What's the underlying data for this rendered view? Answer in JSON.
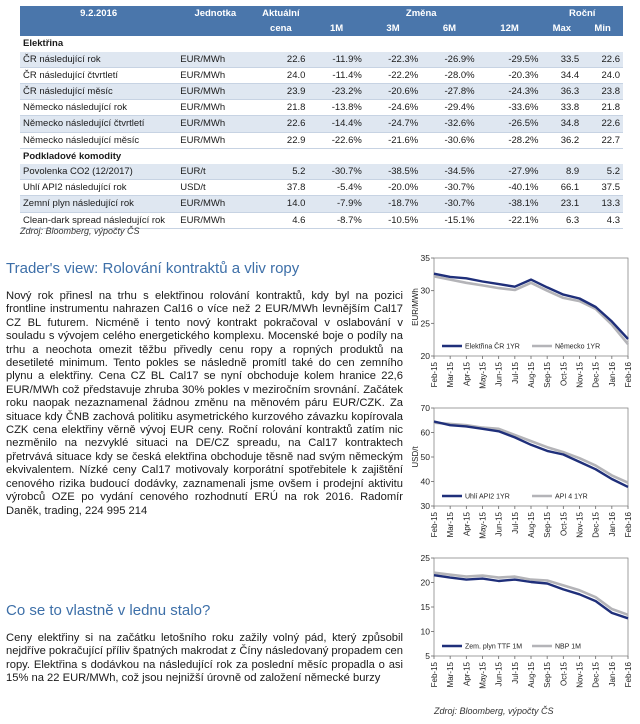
{
  "table": {
    "header_top": {
      "date": "9.2.2016",
      "unit": "Jednotka",
      "price": "Aktuální",
      "change": "Změna",
      "annual": "Roční"
    },
    "header_bottom": {
      "price": "cena",
      "m1": "1M",
      "m3": "3M",
      "m6": "6M",
      "m12": "12M",
      "max": "Max",
      "min": "Min"
    },
    "sections": [
      {
        "title": "Elektřina",
        "rows": [
          {
            "name": "ČR následující rok",
            "unit": "EUR/MWh",
            "price": "22.6",
            "m1": "-11.9%",
            "m3": "-22.3%",
            "m6": "-26.9%",
            "m12": "-29.5%",
            "max": "33.5",
            "min": "22.6"
          },
          {
            "name": "ČR následující čtvrtletí",
            "unit": "EUR/MWh",
            "price": "24.0",
            "m1": "-11.4%",
            "m3": "-22.2%",
            "m6": "-28.0%",
            "m12": "-20.3%",
            "max": "34.4",
            "min": "24.0"
          },
          {
            "name": "ČR následující měsíc",
            "unit": "EUR/MWh",
            "price": "23.9",
            "m1": "-23.2%",
            "m3": "-20.6%",
            "m6": "-27.8%",
            "m12": "-24.3%",
            "max": "36.3",
            "min": "23.8"
          },
          {
            "name": "Německo následující rok",
            "unit": "EUR/MWh",
            "price": "21.8",
            "m1": "-13.8%",
            "m3": "-24.6%",
            "m6": "-29.4%",
            "m12": "-33.6%",
            "max": "33.8",
            "min": "21.8"
          },
          {
            "name": "Německo následující čtvrtletí",
            "unit": "EUR/MWh",
            "price": "22.6",
            "m1": "-14.4%",
            "m3": "-24.7%",
            "m6": "-32.6%",
            "m12": "-26.5%",
            "max": "34.8",
            "min": "22.6"
          },
          {
            "name": "Německo následující měsíc",
            "unit": "EUR/MWh",
            "price": "22.9",
            "m1": "-22.6%",
            "m3": "-21.6%",
            "m6": "-30.6%",
            "m12": "-28.2%",
            "max": "36.2",
            "min": "22.7"
          }
        ]
      },
      {
        "title": "Podkladové komodity",
        "rows": [
          {
            "name": "Povolenka CO2 (12/2017)",
            "unit": "EUR/t",
            "price": "5.2",
            "m1": "-30.7%",
            "m3": "-38.5%",
            "m6": "-34.5%",
            "m12": "-27.9%",
            "max": "8.9",
            "min": "5.2"
          },
          {
            "name": "Uhlí API2 následující rok",
            "unit": "USD/t",
            "price": "37.8",
            "m1": "-5.4%",
            "m3": "-20.0%",
            "m6": "-30.7%",
            "m12": "-40.1%",
            "max": "66.1",
            "min": "37.5"
          },
          {
            "name": "Zemní plyn následující rok",
            "unit": "EUR/MWh",
            "price": "14.0",
            "m1": "-7.9%",
            "m3": "-18.7%",
            "m6": "-30.7%",
            "m12": "-38.1%",
            "max": "23.1",
            "min": "13.3"
          },
          {
            "name": "Clean-dark spread následující rok",
            "unit": "EUR/MWh",
            "price": "4.6",
            "m1": "-8.7%",
            "m3": "-10.5%",
            "m6": "-15.1%",
            "m12": "-22.1%",
            "max": "6.3",
            "min": "4.3"
          }
        ]
      }
    ],
    "source": "Zdroj: Bloomberg, výpočty ČS"
  },
  "article1": {
    "title": "Trader's view: Rolování kontraktů a vliv ropy",
    "body": "Nový rok přinesl na trhu s elektřinou rolování kontraktů, kdy byl na pozici frontline instrumentu nahrazen Cal16 o více než 2 EUR/MWh levnějším Cal17 CZ BL futurem. Nicméně i tento nový kontrakt pokračoval v oslabování v souladu s vývojem celého energetického komplexu. Mocenské boje o podíly na trhu a neochota omezit těžbu přivedly cenu ropy a ropných produktů na desetileté minimum. Tento pokles se následně promítl také do cen zemního plynu a elektřiny. Cena CZ BL Cal17 se nyní obchoduje kolem hranice 22,6 EUR/MWh což představuje zhruba 30% pokles v meziročním srovnání. Začátek roku naopak nezaznamenal žádnou změnu na měnovém páru EUR/CZK. Za situace kdy ČNB zachová politiku asymetrického kurzového závazku kopírovala CZK cena elektřiny věrně vývoj EUR ceny. Roční rolování kontraktů zatím nic nezměnilo na nezvyklé situaci na DE/CZ spreadu, na Cal17 kontraktech přetrvává situace kdy se česká elektřina obchoduje těsně nad svým německým ekvivalentem. Nízké ceny Cal17 motivovaly korporátní spotřebitele k zajištění cenového rizika budoucí dodávky, zaznamenali jsme ovšem i prodejní aktivitu výrobců OZE po vydání cenového rozhodnutí ERÚ na rok 2016. Radomír Daněk, trading, 224 995 214"
  },
  "article2": {
    "title": "Co se to vlastně v lednu stalo?",
    "body": "Ceny elektřiny si na začátku letošního roku zažily volný pád, který způsobil nejdříve pokračující příliv špatných makrodat z Číny následovaný propadem cen ropy. Elektřina s dodávkou na následující rok za poslední měsíc propadla o asi 15% na 22 EUR/MWh, což jsou nejnižší úrovně od založení německé burzy"
  },
  "charts_source": "Zdroj: Bloomberg, výpočty ČS",
  "colors": {
    "header_bg": "#4a76ab",
    "row_shade": "#dfe7f1",
    "title_blue": "#3d6fa8",
    "series_dark": "#1f2f7a",
    "series_grey": "#b4b4b8"
  },
  "chart_data": [
    {
      "type": "line",
      "ylabel": "EUR/MWh",
      "ylim": [
        20,
        35
      ],
      "yticks": [
        "20",
        "25",
        "30",
        "35"
      ],
      "categories": [
        "Feb-15",
        "Mar-15",
        "Apr-15",
        "May-15",
        "Jun-15",
        "Jul-15",
        "Aug-15",
        "Sep-15",
        "Oct-15",
        "Nov-15",
        "Dec-15",
        "Jan-16",
        "Feb-16"
      ],
      "series": [
        {
          "name": "Elektřina ČR 1YR",
          "color": "#1f2f7a",
          "values": [
            32.6,
            32.1,
            31.9,
            31.4,
            31.0,
            30.6,
            31.7,
            30.5,
            29.4,
            28.8,
            27.5,
            25.3,
            22.6
          ]
        },
        {
          "name": "Německo 1YR",
          "color": "#b4b4b8",
          "values": [
            32.2,
            31.7,
            31.2,
            30.8,
            30.4,
            30.1,
            31.2,
            30.0,
            28.9,
            28.4,
            27.2,
            24.8,
            21.8
          ]
        }
      ]
    },
    {
      "type": "line",
      "ylabel": "USD/t",
      "ylim": [
        30,
        70
      ],
      "yticks": [
        "30",
        "40",
        "50",
        "60",
        "70"
      ],
      "categories": [
        "Feb-15",
        "Mar-15",
        "Apr-15",
        "May-15",
        "Jun-15",
        "Jul-15",
        "Aug-15",
        "Sep-15",
        "Oct-15",
        "Nov-15",
        "Dec-15",
        "Jan-16",
        "Feb-16"
      ],
      "series": [
        {
          "name": "Uhlí API2 1YR",
          "color": "#1f2f7a",
          "values": [
            64.5,
            63.0,
            62.5,
            61.5,
            60.5,
            58.0,
            55.0,
            52.5,
            51.0,
            48.0,
            45.0,
            41.0,
            37.8
          ]
        },
        {
          "name": "API 4 1YR",
          "color": "#b4b4b8",
          "values": [
            64.0,
            63.5,
            63.0,
            62.0,
            61.5,
            59.0,
            56.5,
            54.0,
            52.0,
            49.5,
            46.5,
            42.5,
            39.5
          ]
        }
      ]
    },
    {
      "type": "line",
      "ylim": [
        5,
        25
      ],
      "yticks": [
        "5",
        "10",
        "15",
        "20",
        "25"
      ],
      "categories": [
        "Feb-15",
        "Mar-15",
        "Apr-15",
        "May-15",
        "Jun-15",
        "Jul-15",
        "Aug-15",
        "Sep-15",
        "Oct-15",
        "Nov-15",
        "Dec-15",
        "Jan-16",
        "Feb-16"
      ],
      "series": [
        {
          "name": "Zem. plyn TTF 1M",
          "color": "#1f2f7a",
          "values": [
            21.5,
            21.0,
            20.6,
            20.8,
            20.3,
            20.6,
            20.1,
            19.8,
            18.6,
            17.6,
            16.2,
            13.8,
            12.7
          ]
        },
        {
          "name": "NBP 1M",
          "color": "#b4b4b8",
          "values": [
            22.0,
            21.6,
            21.2,
            21.4,
            21.0,
            21.2,
            20.6,
            20.4,
            19.4,
            18.4,
            17.0,
            14.6,
            13.4
          ]
        }
      ]
    }
  ]
}
